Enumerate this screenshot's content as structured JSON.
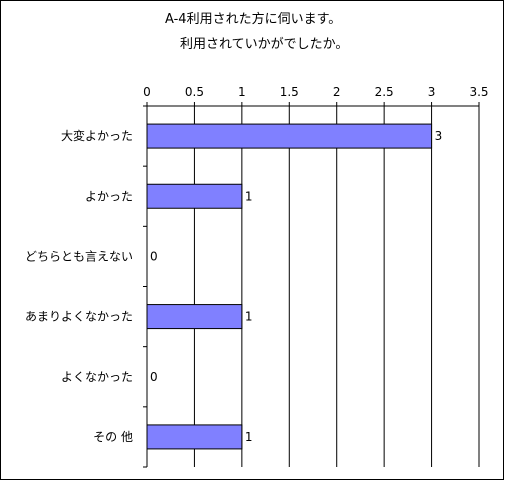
{
  "chart_data": {
    "type": "bar",
    "orientation": "horizontal",
    "title_lines": [
      "A-4利用された方に伺います。",
      "利用されていかがでしたか。"
    ],
    "categories": [
      "大変よかった",
      "よかった",
      "どちらとも言えない",
      "あまりよくなかった",
      "よくなかった",
      "その他"
    ],
    "category_display": [
      "大変よかった",
      "よかった",
      "どちらとも言えない",
      "あまりよくなかった",
      "よくなかった",
      "その 他"
    ],
    "values": [
      3,
      1,
      0,
      1,
      0,
      1
    ],
    "xlim": [
      0,
      3.5
    ],
    "x_ticks": [
      "0",
      "0.5",
      "1",
      "1.5",
      "2",
      "2.5",
      "3",
      "3.5"
    ],
    "x_tick_values": [
      0,
      0.5,
      1,
      1.5,
      2,
      2.5,
      3,
      3.5
    ],
    "x_axis_position": "top",
    "grid": "vertical",
    "legend": "none",
    "data_labels": [
      "3",
      "1",
      "0",
      "1",
      "0",
      "1"
    ],
    "colors": {
      "bar_fill": "#8080ff",
      "bar_stroke": "#000000",
      "border": "#000000",
      "grid": "#000000"
    }
  }
}
